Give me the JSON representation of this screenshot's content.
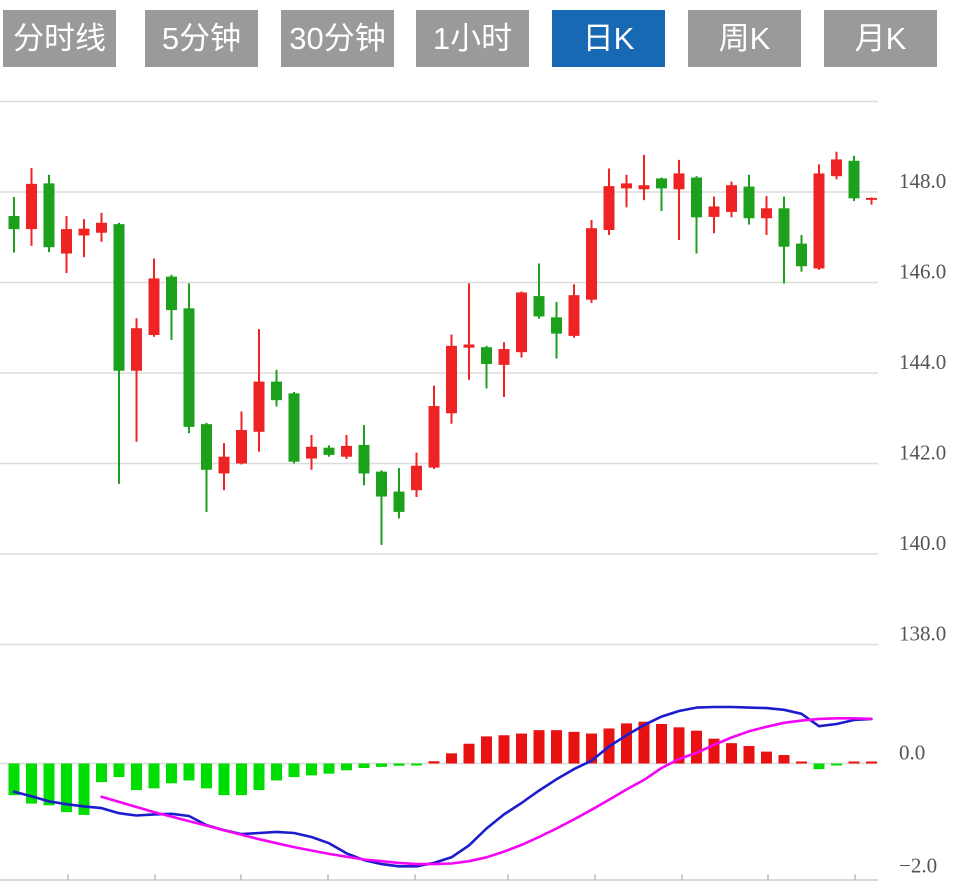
{
  "toolbar": {
    "tabs": [
      {
        "label": "分时线",
        "active": false
      },
      {
        "label": "5分钟",
        "active": false
      },
      {
        "label": "30分钟",
        "active": false
      },
      {
        "label": "1小时",
        "active": false
      },
      {
        "label": "日K",
        "active": true
      },
      {
        "label": "周K",
        "active": false
      },
      {
        "label": "月K",
        "active": false
      }
    ]
  },
  "colors": {
    "up": "#ee2424",
    "down": "#1da11d",
    "macd_up": "#e81212",
    "macd_down": "#00dd00",
    "dif_line": "#1c1ccd",
    "dea_line": "#f505f5",
    "grid": "#dcdcdc",
    "axis_line": "#c8ccd2",
    "tick": "#b8bec8",
    "axis_label": "#555555",
    "tab_bg": "#9a9a9a",
    "tab_active_bg": "#1769b3",
    "tab_text": "#ffffff"
  },
  "chart_data": {
    "type": "candlestick+macd",
    "grid": true,
    "legend": false,
    "price_axis": {
      "side": "right",
      "range_note": "2.0 per gridline",
      "gridlines": [
        150.0,
        148.0,
        146.0,
        144.0,
        142.0,
        140.0,
        138.0
      ],
      "labels": [
        "",
        "148.0",
        "146.0",
        "144.0",
        "142.0",
        "140.0",
        "138.0"
      ]
    },
    "macd_axis": {
      "side": "right",
      "gridlines": [
        0.0,
        -2.0
      ],
      "labels": [
        "0.0",
        "−2.0"
      ]
    },
    "last_price": 147.87,
    "candles_ohlc": [
      [
        147.47,
        147.89,
        146.66,
        147.18
      ],
      [
        147.18,
        148.53,
        146.81,
        148.18
      ],
      [
        148.19,
        148.38,
        146.67,
        146.78
      ],
      [
        146.64,
        147.47,
        146.21,
        147.18
      ],
      [
        147.04,
        147.4,
        146.56,
        147.19
      ],
      [
        147.1,
        147.54,
        146.9,
        147.32
      ],
      [
        147.29,
        147.32,
        141.55,
        144.05
      ],
      [
        144.05,
        145.21,
        142.48,
        144.99
      ],
      [
        144.84,
        146.53,
        144.8,
        146.09
      ],
      [
        146.13,
        146.17,
        144.73,
        145.39
      ],
      [
        145.43,
        145.98,
        142.67,
        142.81
      ],
      [
        142.87,
        142.9,
        140.93,
        141.86
      ],
      [
        141.78,
        142.45,
        141.41,
        142.15
      ],
      [
        142.0,
        143.15,
        141.98,
        142.74
      ],
      [
        142.7,
        144.97,
        142.26,
        143.81
      ],
      [
        143.81,
        144.07,
        143.26,
        143.4
      ],
      [
        143.55,
        143.58,
        142.0,
        142.04
      ],
      [
        142.11,
        142.63,
        141.86,
        142.37
      ],
      [
        142.35,
        142.4,
        142.15,
        142.19
      ],
      [
        142.15,
        142.63,
        142.1,
        142.39
      ],
      [
        142.41,
        142.85,
        141.52,
        141.78
      ],
      [
        141.82,
        141.85,
        140.2,
        141.27
      ],
      [
        141.38,
        141.9,
        140.79,
        140.93
      ],
      [
        141.41,
        142.24,
        141.26,
        141.95
      ],
      [
        141.91,
        143.72,
        141.88,
        143.27
      ],
      [
        143.11,
        144.85,
        142.88,
        144.6
      ],
      [
        144.56,
        145.98,
        143.85,
        144.63
      ],
      [
        144.57,
        144.6,
        143.66,
        144.2
      ],
      [
        144.18,
        144.68,
        143.47,
        144.53
      ],
      [
        144.46,
        145.8,
        144.34,
        145.78
      ],
      [
        145.7,
        146.42,
        145.2,
        145.25
      ],
      [
        145.23,
        145.57,
        144.32,
        144.87
      ],
      [
        144.82,
        145.96,
        144.78,
        145.72
      ],
      [
        145.62,
        147.38,
        145.55,
        147.2
      ],
      [
        147.16,
        148.52,
        147.05,
        148.13
      ],
      [
        148.08,
        148.38,
        147.66,
        148.19
      ],
      [
        148.06,
        148.82,
        147.82,
        148.15
      ],
      [
        148.3,
        148.32,
        147.58,
        148.08
      ],
      [
        148.06,
        148.71,
        146.94,
        148.41
      ],
      [
        148.32,
        148.35,
        146.64,
        147.44
      ],
      [
        147.45,
        147.9,
        147.09,
        147.68
      ],
      [
        147.56,
        148.23,
        147.44,
        148.15
      ],
      [
        148.12,
        148.38,
        147.28,
        147.42
      ],
      [
        147.42,
        147.91,
        147.05,
        147.64
      ],
      [
        147.64,
        147.9,
        145.98,
        146.79
      ],
      [
        146.86,
        147.05,
        146.24,
        146.36
      ],
      [
        146.31,
        148.61,
        146.28,
        148.41
      ],
      [
        148.35,
        148.89,
        148.28,
        148.72
      ],
      [
        148.69,
        148.8,
        147.8,
        147.86
      ],
      [
        147.87,
        147.88,
        147.72,
        147.87
      ]
    ],
    "macd": {
      "histogram": [
        -0.56,
        -0.71,
        -0.74,
        -0.86,
        -0.91,
        -0.33,
        -0.24,
        -0.47,
        -0.44,
        -0.35,
        -0.3,
        -0.44,
        -0.56,
        -0.56,
        -0.47,
        -0.3,
        -0.24,
        -0.21,
        -0.18,
        -0.12,
        -0.08,
        -0.06,
        -0.04,
        -0.03,
        0.04,
        0.18,
        0.35,
        0.48,
        0.5,
        0.53,
        0.59,
        0.59,
        0.56,
        0.53,
        0.62,
        0.71,
        0.74,
        0.7,
        0.64,
        0.58,
        0.44,
        0.36,
        0.31,
        0.21,
        0.15,
        0.03,
        -0.1,
        -0.03,
        0.02,
        0.01
      ],
      "dif": [
        -0.5,
        -0.58,
        -0.67,
        -0.72,
        -0.76,
        -0.79,
        -0.88,
        -0.92,
        -0.9,
        -0.89,
        -0.93,
        -1.09,
        -1.18,
        -1.25,
        -1.23,
        -1.21,
        -1.23,
        -1.3,
        -1.41,
        -1.59,
        -1.71,
        -1.78,
        -1.82,
        -1.82,
        -1.76,
        -1.66,
        -1.45,
        -1.15,
        -0.9,
        -0.7,
        -0.48,
        -0.28,
        -0.1,
        0.05,
        0.3,
        0.5,
        0.68,
        0.83,
        0.93,
        0.99,
        1.0,
        1.0,
        0.99,
        0.98,
        0.95,
        0.88,
        0.66,
        0.7,
        0.77,
        0.79
      ],
      "dea": [
        null,
        null,
        null,
        null,
        null,
        -0.59,
        -0.68,
        -0.77,
        -0.86,
        -0.94,
        -1.02,
        -1.1,
        -1.18,
        -1.26,
        -1.34,
        -1.41,
        -1.48,
        -1.54,
        -1.6,
        -1.65,
        -1.7,
        -1.73,
        -1.76,
        -1.78,
        -1.78,
        -1.77,
        -1.73,
        -1.66,
        -1.56,
        -1.44,
        -1.3,
        -1.15,
        -0.99,
        -0.82,
        -0.64,
        -0.46,
        -0.29,
        -0.08,
        0.08,
        0.19,
        0.33,
        0.46,
        0.57,
        0.65,
        0.72,
        0.76,
        0.79,
        0.8,
        0.8,
        0.79
      ]
    }
  }
}
